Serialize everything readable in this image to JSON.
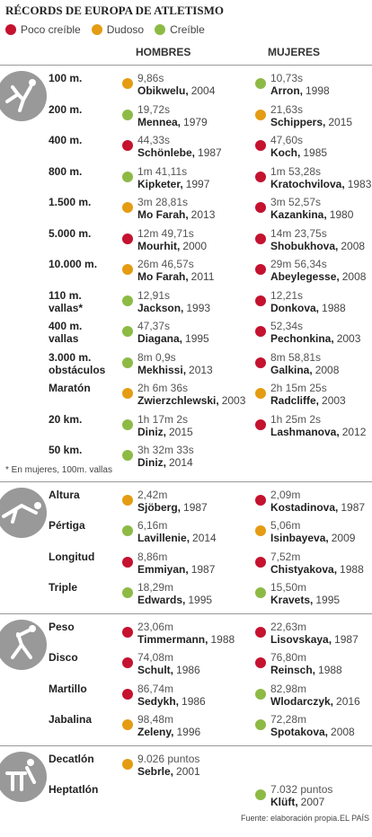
{
  "title": "RÉCORDS DE EUROPA DE ATLETISMO",
  "legend": [
    {
      "label": "Poco creíble",
      "color": "#c4122f"
    },
    {
      "label": "Dudoso",
      "color": "#e49c13"
    },
    {
      "label": "Creíble",
      "color": "#8dba45"
    }
  ],
  "headers": [
    "HOMBRES",
    "MUJERES"
  ],
  "sections": [
    {
      "rows": [
        {
          "event": "100 m.",
          "men": {
            "record": "9,86s",
            "name": "Obikwelu,",
            "year": 2004,
            "rating": 1
          },
          "women": {
            "record": "10,73s",
            "name": "Arron,",
            "year": 1998,
            "rating": 2
          }
        },
        {
          "event": "200 m.",
          "men": {
            "record": "19,72s",
            "name": "Mennea,",
            "year": 1979,
            "rating": 2
          },
          "women": {
            "record": "21,63s",
            "name": "Schippers,",
            "year": 2015,
            "rating": 1
          }
        },
        {
          "event": "400 m.",
          "men": {
            "record": "44,33s",
            "name": "Schönlebe,",
            "year": 1987,
            "rating": 0
          },
          "women": {
            "record": "47,60s",
            "name": "Koch,",
            "year": 1985,
            "rating": 0
          }
        },
        {
          "event": "800 m.",
          "men": {
            "record": "1m 41,11s",
            "name": "Kipketer,",
            "year": 1997,
            "rating": 2
          },
          "women": {
            "record": "1m 53,28s",
            "name": "Kratochvilova,",
            "year": 1983,
            "rating": 0
          }
        },
        {
          "event": "1.500 m.",
          "men": {
            "record": "3m 28,81s",
            "name": "Mo Farah,",
            "year": 2013,
            "rating": 1
          },
          "women": {
            "record": "3m 52,57s",
            "name": "Kazankina,",
            "year": 1980,
            "rating": 0
          }
        },
        {
          "event": "5.000 m.",
          "men": {
            "record": "12m 49,71s",
            "name": "Mourhit,",
            "year": 2000,
            "rating": 0
          },
          "women": {
            "record": "14m 23,75s",
            "name": "Shobukhova,",
            "year": 2008,
            "rating": 0
          }
        },
        {
          "event": "10.000 m.",
          "men": {
            "record": "26m 46,57s",
            "name": "Mo Farah,",
            "year": 2011,
            "rating": 1
          },
          "women": {
            "record": "29m 56,34s",
            "name": "Abeylegesse,",
            "year": 2008,
            "rating": 0
          }
        },
        {
          "event": "110 m. vallas*",
          "men": {
            "record": "12,91s",
            "name": "Jackson,",
            "year": 1993,
            "rating": 2
          },
          "women": {
            "record": "12,21s",
            "name": "Donkova,",
            "year": 1988,
            "rating": 0
          }
        },
        {
          "event": "400 m. vallas",
          "men": {
            "record": "47,37s",
            "name": "Diagana,",
            "year": 1995,
            "rating": 2
          },
          "women": {
            "record": "52,34s",
            "name": "Pechonkina,",
            "year": 2003,
            "rating": 0
          }
        },
        {
          "event": "3.000 m. obstáculos",
          "men": {
            "record": "8m 0,9s",
            "name": "Mekhissi,",
            "year": 2013,
            "rating": 2
          },
          "women": {
            "record": "8m 58,81s",
            "name": "Galkina,",
            "year": 2008,
            "rating": 0
          }
        },
        {
          "event": "Maratón",
          "men": {
            "record": "2h 6m 36s",
            "name": "Zwierzchlewski,",
            "year": 2003,
            "rating": 1
          },
          "women": {
            "record": "2h 15m 25s",
            "name": "Radcliffe,",
            "year": 2003,
            "rating": 1
          }
        },
        {
          "event": "20 km.",
          "men": {
            "record": "1h 17m 2s",
            "name": "Diniz,",
            "year": 2015,
            "rating": 2
          },
          "women": {
            "record": "1h 25m 2s",
            "name": "Lashmanova,",
            "year": 2012,
            "rating": 0
          }
        },
        {
          "event": "50 km.",
          "men": {
            "record": "3h 32m 33s",
            "name": "Diniz,",
            "year": 2014,
            "rating": 2
          },
          "women": null
        }
      ],
      "note": "* En mujeres, 100m. vallas"
    },
    {
      "rows": [
        {
          "event": "Altura",
          "men": {
            "record": "2,42m",
            "name": "Sjöberg,",
            "year": 1987,
            "rating": 1
          },
          "women": {
            "record": "2,09m",
            "name": "Kostadinova,",
            "year": 1987,
            "rating": 0
          }
        },
        {
          "event": "Pértiga",
          "men": {
            "record": "6,16m",
            "name": "Lavillenie,",
            "year": 2014,
            "rating": 2
          },
          "women": {
            "record": "5,06m",
            "name": "Isinbayeva,",
            "year": 2009,
            "rating": 1
          }
        },
        {
          "event": "Longitud",
          "men": {
            "record": "8,86m",
            "name": "Emmiyan,",
            "year": 1987,
            "rating": 0
          },
          "women": {
            "record": "7,52m",
            "name": "Chistyakova,",
            "year": 1988,
            "rating": 0
          }
        },
        {
          "event": "Triple",
          "men": {
            "record": "18,29m",
            "name": "Edwards,",
            "year": 1995,
            "rating": 2
          },
          "women": {
            "record": "15,50m",
            "name": "Kravets,",
            "year": 1995,
            "rating": 2
          }
        }
      ]
    },
    {
      "rows": [
        {
          "event": "Peso",
          "men": {
            "record": "23,06m",
            "name": "Timmermann,",
            "year": 1988,
            "rating": 0
          },
          "women": {
            "record": "22,63m",
            "name": "Lisovskaya,",
            "year": 1987,
            "rating": 0
          }
        },
        {
          "event": "Disco",
          "men": {
            "record": "74,08m",
            "name": "Schult,",
            "year": 1986,
            "rating": 0
          },
          "women": {
            "record": "76,80m",
            "name": "Reinsch,",
            "year": 1988,
            "rating": 0
          }
        },
        {
          "event": "Martillo",
          "men": {
            "record": "86,74m",
            "name": "Sedykh,",
            "year": 1986,
            "rating": 0
          },
          "women": {
            "record": "82,98m",
            "name": "Wlodarczyk,",
            "year": 2016,
            "rating": 2
          }
        },
        {
          "event": "Jabalina",
          "men": {
            "record": "98,48m",
            "name": "Zeleny,",
            "year": 1996,
            "rating": 1
          },
          "women": {
            "record": "72,28m",
            "name": "Spotakova,",
            "year": 2008,
            "rating": 2
          }
        }
      ]
    },
    {
      "rows": [
        {
          "event": "Decatlón",
          "men": {
            "record": "9.026 puntos",
            "name": "Sebrle,",
            "year": 2001,
            "rating": 1
          },
          "women": null
        },
        {
          "event": "Heptatlón",
          "men": null,
          "women": {
            "record": "7.032 puntos",
            "name": "Klüft,",
            "year": 2007,
            "rating": 2
          }
        }
      ]
    }
  ],
  "footer": {
    "source": "Fuente: elaboración propia.",
    "brand": "EL PAÍS"
  }
}
